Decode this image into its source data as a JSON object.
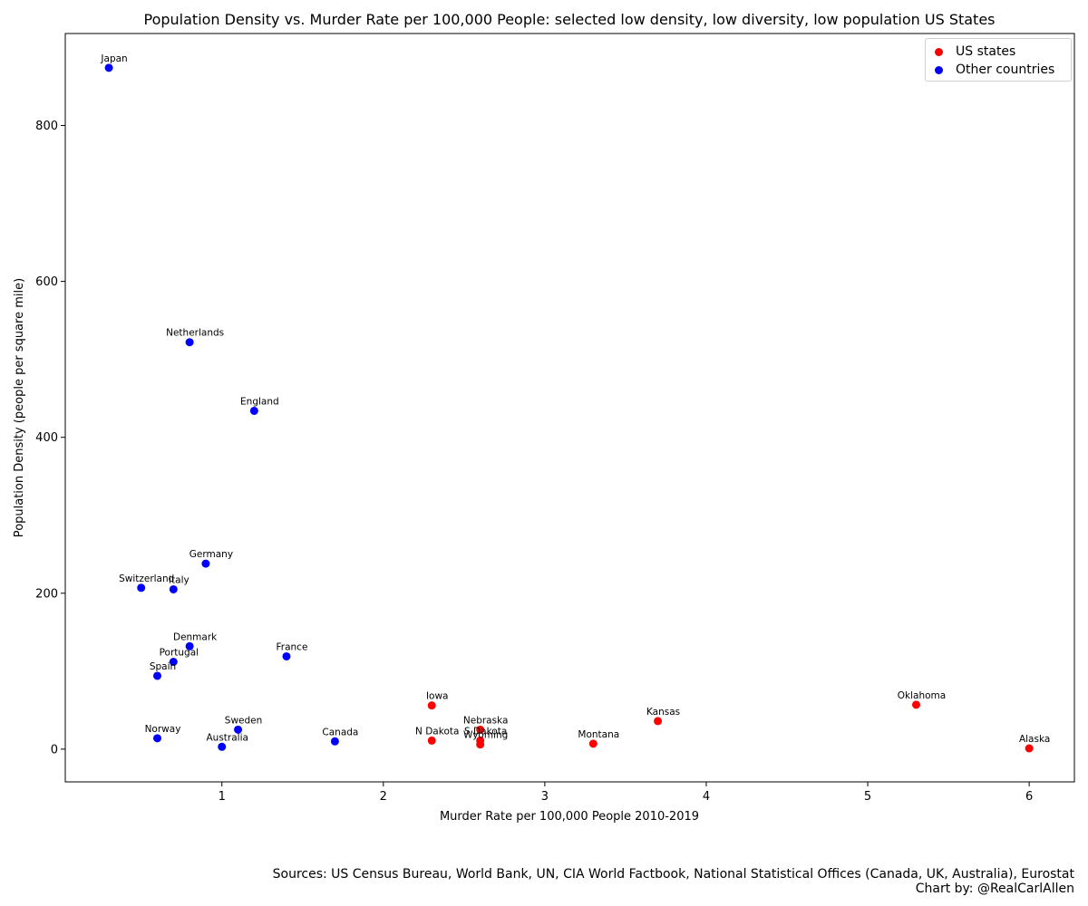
{
  "chart_data": {
    "type": "scatter",
    "title": "Population Density vs. Murder Rate per 100,000 People: selected low density, low diversity, low population US States",
    "xlabel": "Murder Rate per 100,000 People 2010-2019",
    "ylabel": "Population Density (people per square mile)",
    "xlim": [
      0.03,
      6.28
    ],
    "ylim": [
      -42,
      918
    ],
    "xticks": [
      1,
      2,
      3,
      4,
      5,
      6
    ],
    "yticks": [
      0,
      200,
      400,
      600,
      800
    ],
    "grid": false,
    "legend_position": "top-right",
    "series": [
      {
        "name": "US states",
        "color": "#ff0000",
        "points": [
          {
            "label": "Iowa",
            "x": 2.3,
            "y": 56
          },
          {
            "label": "Nebraska",
            "x": 2.6,
            "y": 25
          },
          {
            "label": "N Dakota",
            "x": 2.3,
            "y": 11
          },
          {
            "label": "S Dakota",
            "x": 2.6,
            "y": 11
          },
          {
            "label": "Wyoming",
            "x": 2.6,
            "y": 6
          },
          {
            "label": "Montana",
            "x": 3.3,
            "y": 7
          },
          {
            "label": "Kansas",
            "x": 3.7,
            "y": 36
          },
          {
            "label": "Oklahoma",
            "x": 5.3,
            "y": 57
          },
          {
            "label": "Alaska",
            "x": 6.0,
            "y": 1
          }
        ]
      },
      {
        "name": "Other countries",
        "color": "#0000ff",
        "points": [
          {
            "label": "Japan",
            "x": 0.3,
            "y": 874
          },
          {
            "label": "Netherlands",
            "x": 0.8,
            "y": 522
          },
          {
            "label": "England",
            "x": 1.2,
            "y": 434
          },
          {
            "label": "Germany",
            "x": 0.9,
            "y": 238
          },
          {
            "label": "Switzerland",
            "x": 0.5,
            "y": 207
          },
          {
            "label": "Italy",
            "x": 0.7,
            "y": 205
          },
          {
            "label": "Denmark",
            "x": 0.8,
            "y": 132
          },
          {
            "label": "Portugal",
            "x": 0.7,
            "y": 112
          },
          {
            "label": "France",
            "x": 1.4,
            "y": 119
          },
          {
            "label": "Spain",
            "x": 0.6,
            "y": 94
          },
          {
            "label": "Norway",
            "x": 0.6,
            "y": 14
          },
          {
            "label": "Sweden",
            "x": 1.1,
            "y": 25
          },
          {
            "label": "Australia",
            "x": 1.0,
            "y": 3
          },
          {
            "label": "Canada",
            "x": 1.7,
            "y": 10
          }
        ]
      }
    ]
  },
  "footer": {
    "sources": "Sources: US Census Bureau, World Bank, UN, CIA World Factbook, National Statistical Offices (Canada, UK, Australia), Eurostat",
    "credit": "Chart by: @RealCarlAllen"
  }
}
